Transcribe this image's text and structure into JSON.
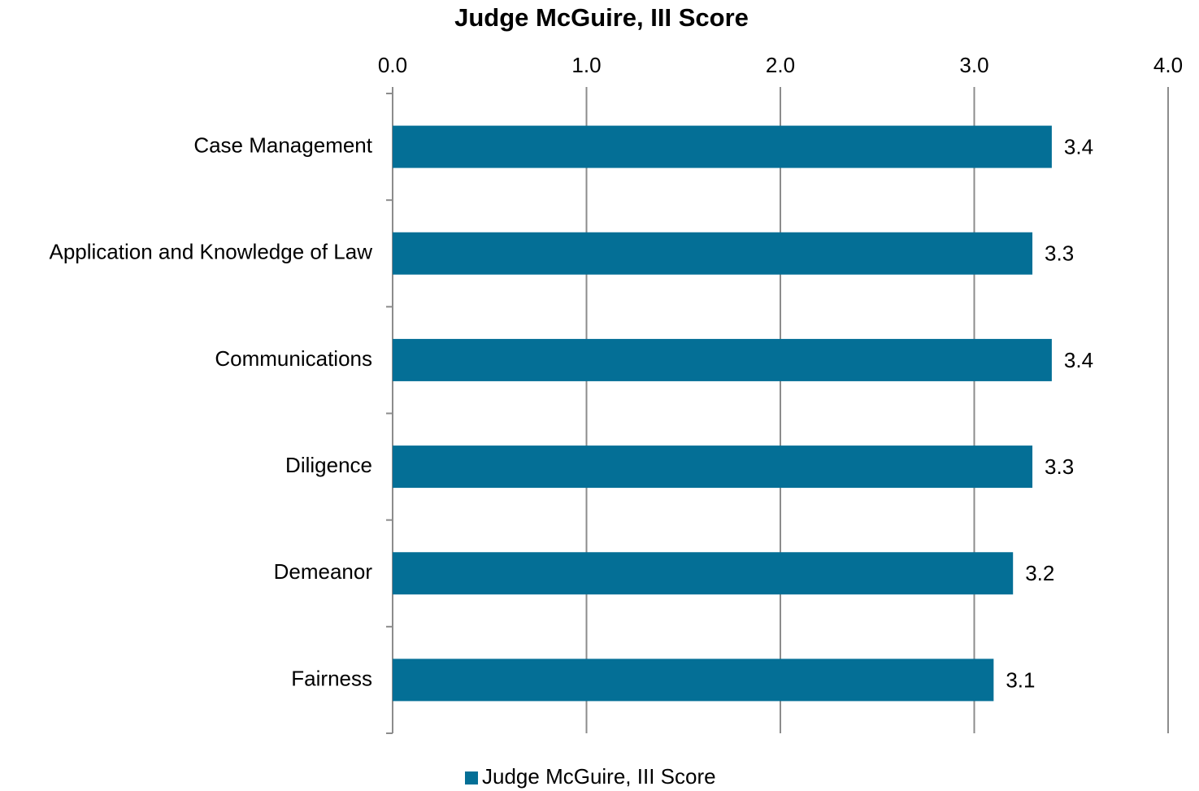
{
  "chart_data": {
    "type": "bar",
    "orientation": "horizontal",
    "title": "Judge McGuire, III Score",
    "categories": [
      "Case Management",
      "Application and Knowledge of Law",
      "Communications",
      "Diligence",
      "Demeanor",
      "Fairness"
    ],
    "series": [
      {
        "name": "Judge McGuire, III Score",
        "color": "#046f96",
        "values": [
          3.4,
          3.3,
          3.4,
          3.3,
          3.2,
          3.1
        ]
      }
    ],
    "xlim": [
      0,
      4
    ],
    "xticks": [
      {
        "value": 0,
        "label": "0.0"
      },
      {
        "value": 1,
        "label": "1.0"
      },
      {
        "value": 2,
        "label": "2.0"
      },
      {
        "value": 3,
        "label": "3.0"
      },
      {
        "value": 4,
        "label": "4.0"
      }
    ],
    "grid": true,
    "legend": "bottom"
  }
}
